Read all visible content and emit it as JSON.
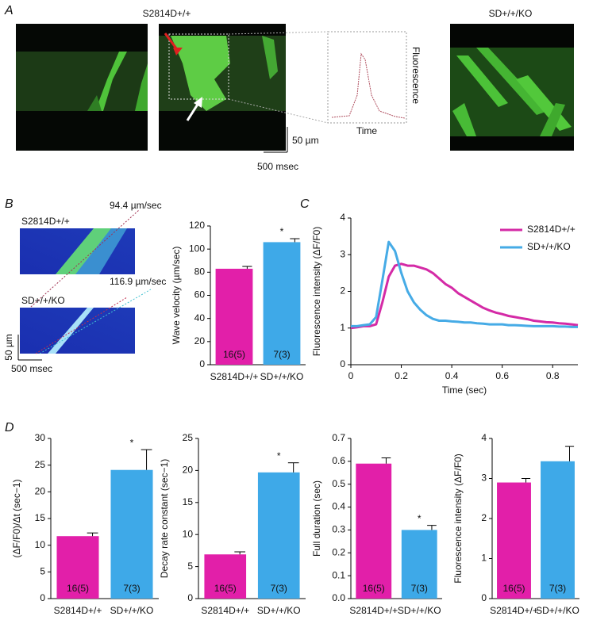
{
  "panel_labels": [
    "A",
    "B",
    "C",
    "D"
  ],
  "panel_a": {
    "titles": [
      "S2814D+/+",
      "SD+/+/KO"
    ],
    "inset": {
      "ylabel": "Fluorescence",
      "xlabel": "Time"
    },
    "scale": {
      "vertical": "50 µm",
      "horizontal": "500 msec"
    }
  },
  "panel_b": {
    "images": [
      {
        "title": "S2814D+/+",
        "velocity": "94.4 µm/sec"
      },
      {
        "title": "SD+/+/KO",
        "velocity": "116.9 µm/sec"
      }
    ],
    "scale": {
      "vertical": "50 µm",
      "horizontal": "500 msec"
    }
  },
  "chart_data": [
    {
      "type": "bar",
      "ylabel": "Wave velocity (µm/sec)",
      "categories": [
        "S2814D+/+",
        "SD+/+/KO"
      ],
      "values": [
        83,
        106
      ],
      "errors": [
        2,
        3
      ],
      "bar_labels": [
        "16(5)",
        "7(3)"
      ],
      "significance_labels": [
        null,
        "*"
      ],
      "colors": [
        "#e21fa9",
        "#3ea9e8"
      ],
      "ylim": [
        0,
        120
      ],
      "yticks": [
        0,
        20,
        40,
        60,
        80,
        100,
        120
      ]
    },
    {
      "type": "line",
      "xlabel": "Time (sec)",
      "ylabel": "Fluorescence intensity (ΔF/F0)",
      "x": [
        0,
        0.025,
        0.05,
        0.075,
        0.1,
        0.125,
        0.15,
        0.175,
        0.2,
        0.225,
        0.25,
        0.275,
        0.3,
        0.325,
        0.35,
        0.375,
        0.4,
        0.425,
        0.45,
        0.475,
        0.5,
        0.525,
        0.55,
        0.575,
        0.6,
        0.625,
        0.65,
        0.675,
        0.7,
        0.725,
        0.75,
        0.775,
        0.8,
        0.825,
        0.85,
        0.875,
        0.9
      ],
      "series": [
        {
          "name": "S2814D+/+",
          "color": "#d42aa6",
          "values": [
            1.0,
            1.02,
            1.05,
            1.05,
            1.1,
            1.7,
            2.4,
            2.7,
            2.75,
            2.7,
            2.7,
            2.65,
            2.6,
            2.5,
            2.35,
            2.2,
            2.1,
            1.95,
            1.85,
            1.75,
            1.65,
            1.55,
            1.48,
            1.42,
            1.38,
            1.33,
            1.3,
            1.27,
            1.24,
            1.2,
            1.18,
            1.16,
            1.15,
            1.13,
            1.12,
            1.1,
            1.08
          ]
        },
        {
          "name": "SD+/+/KO",
          "color": "#46abe6",
          "values": [
            1.05,
            1.05,
            1.08,
            1.1,
            1.3,
            2.3,
            3.35,
            3.1,
            2.5,
            2.0,
            1.7,
            1.5,
            1.35,
            1.25,
            1.2,
            1.2,
            1.18,
            1.17,
            1.15,
            1.15,
            1.13,
            1.12,
            1.1,
            1.1,
            1.1,
            1.08,
            1.08,
            1.07,
            1.06,
            1.05,
            1.05,
            1.05,
            1.05,
            1.04,
            1.04,
            1.03,
            1.03
          ]
        }
      ],
      "xlim": [
        0,
        0.9
      ],
      "xticks": [
        0,
        0.2,
        0.4,
        0.6,
        0.8
      ],
      "ylim": [
        0,
        4
      ],
      "yticks": [
        0,
        1,
        2,
        3,
        4
      ],
      "legend": "upper right"
    },
    {
      "type": "bar",
      "ylabel": "(ΔF/F0)/Δt (sec−1)",
      "categories": [
        "S2814D+/+",
        "SD+/+/KO"
      ],
      "values": [
        11.7,
        24.1
      ],
      "errors": [
        0.6,
        3.8
      ],
      "bar_labels": [
        "16(5)",
        "7(3)"
      ],
      "significance_labels": [
        null,
        "*"
      ],
      "colors": [
        "#e21fa9",
        "#3ea9e8"
      ],
      "ylim": [
        0,
        30
      ],
      "yticks": [
        0,
        5,
        10,
        15,
        20,
        25,
        30
      ]
    },
    {
      "type": "bar",
      "ylabel": "Decay rate constant (sec−1)",
      "categories": [
        "S2814D+/+",
        "SD+/+/KO"
      ],
      "values": [
        6.9,
        19.7
      ],
      "errors": [
        0.4,
        1.5
      ],
      "bar_labels": [
        "16(5)",
        "7(3)"
      ],
      "significance_labels": [
        null,
        "*"
      ],
      "colors": [
        "#e21fa9",
        "#3ea9e8"
      ],
      "ylim": [
        0,
        25
      ],
      "yticks": [
        0,
        5,
        10,
        15,
        20,
        25
      ]
    },
    {
      "type": "bar",
      "ylabel": "Full duration (sec)",
      "categories": [
        "S2814D+/+",
        "SD+/+/KO"
      ],
      "values": [
        0.59,
        0.3
      ],
      "errors": [
        0.025,
        0.02
      ],
      "bar_labels": [
        "16(5)",
        "7(3)"
      ],
      "significance_labels": [
        null,
        "*"
      ],
      "colors": [
        "#e21fa9",
        "#3ea9e8"
      ],
      "ylim": [
        0,
        0.7
      ],
      "yticks": [
        {
          "value": 0,
          "label": "0.0"
        },
        0.1,
        0.2,
        0.3,
        0.4,
        0.5,
        0.6,
        0.7
      ]
    },
    {
      "type": "bar",
      "ylabel": "Fluorescence intensity (ΔF/F0)",
      "categories": [
        "S2814D+/+",
        "SD+/+/KO"
      ],
      "values": [
        2.9,
        3.43
      ],
      "errors": [
        0.1,
        0.37
      ],
      "bar_labels": [
        "16(5)",
        "7(3)"
      ],
      "significance_labels": [
        null,
        null
      ],
      "colors": [
        "#e21fa9",
        "#3ea9e8"
      ],
      "ylim": [
        0,
        4
      ],
      "yticks": [
        0,
        1,
        2,
        3,
        4
      ]
    }
  ]
}
